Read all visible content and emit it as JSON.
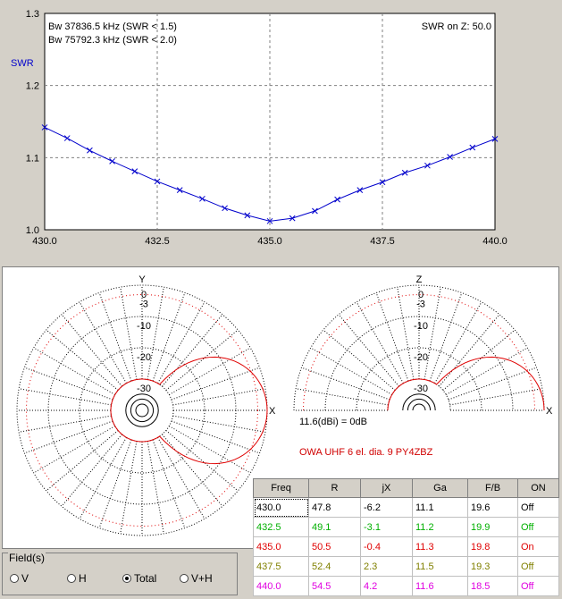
{
  "swr_chart": {
    "bandwidth_1": "Bw 37836.5 kHz (SWR < 1.5)",
    "bandwidth_2": "Bw 75792.3 kHz (SWR < 2.0)",
    "reference": "SWR on Z: 50.0",
    "ylabel": "SWR",
    "y_ticks": [
      "1.3",
      "1.2",
      "1.1",
      "1.0"
    ],
    "x_ticks": [
      "430.0",
      "432.5",
      "435.0",
      "437.5",
      "440.0"
    ]
  },
  "chart_data": {
    "type": "line",
    "title": "",
    "xlabel": "",
    "ylabel": "SWR",
    "xlim": [
      430.0,
      440.0
    ],
    "ylim": [
      1.0,
      1.3
    ],
    "grid": true,
    "x": [
      430.0,
      430.5,
      431.0,
      431.5,
      432.0,
      432.5,
      433.0,
      433.5,
      434.0,
      434.5,
      435.0,
      435.5,
      436.0,
      436.5,
      437.0,
      437.5,
      438.0,
      438.5,
      439.0,
      439.5,
      440.0
    ],
    "series": [
      {
        "color": "#0000cc",
        "values": [
          1.142,
          1.127,
          1.11,
          1.095,
          1.081,
          1.067,
          1.055,
          1.043,
          1.03,
          1.02,
          1.012,
          1.016,
          1.026,
          1.042,
          1.055,
          1.066,
          1.079,
          1.089,
          1.101,
          1.114,
          1.126
        ]
      }
    ]
  },
  "polar_left": {
    "axis_top": "Y",
    "axis_right": "X",
    "ring_labels": [
      "0",
      "-3",
      "-10",
      "-20",
      "-30"
    ]
  },
  "polar_right": {
    "axis_top": "Z",
    "axis_right": "X",
    "ring_labels": [
      "0",
      "-3",
      "-10",
      "-20",
      "-30"
    ]
  },
  "gain_note": "11.6(dBi) = 0dB",
  "antenna_name": "OWA UHF 6 el.  dia. 9   PY4ZBZ",
  "colors": {
    "curve": "#0000cc",
    "pattern": "#e00000",
    "grid_red": "#e00000"
  },
  "table": {
    "headers": [
      "Freq",
      "R",
      "jX",
      "Ga",
      "F/B",
      "ON"
    ],
    "rows": [
      {
        "color": "#000000",
        "cells": [
          "430.0",
          "47.8",
          "-6.2",
          "11.1",
          "19.6",
          "Off"
        ]
      },
      {
        "color": "#00b000",
        "cells": [
          "432.5",
          "49.1",
          "-3.1",
          "11.2",
          "19.9",
          "Off"
        ]
      },
      {
        "color": "#e00000",
        "cells": [
          "435.0",
          "50.5",
          "-0.4",
          "11.3",
          "19.8",
          "On"
        ]
      },
      {
        "color": "#808000",
        "cells": [
          "437.5",
          "52.4",
          "2.3",
          "11.5",
          "19.3",
          "Off"
        ]
      },
      {
        "color": "#e000e0",
        "cells": [
          "440.0",
          "54.5",
          "4.2",
          "11.6",
          "18.5",
          "Off"
        ]
      }
    ]
  },
  "fields": {
    "legend": "Field(s)",
    "options": [
      {
        "label": "V",
        "selected": false
      },
      {
        "label": "H",
        "selected": false
      },
      {
        "label": "Total",
        "selected": true
      },
      {
        "label": "V+H",
        "selected": false
      }
    ]
  }
}
